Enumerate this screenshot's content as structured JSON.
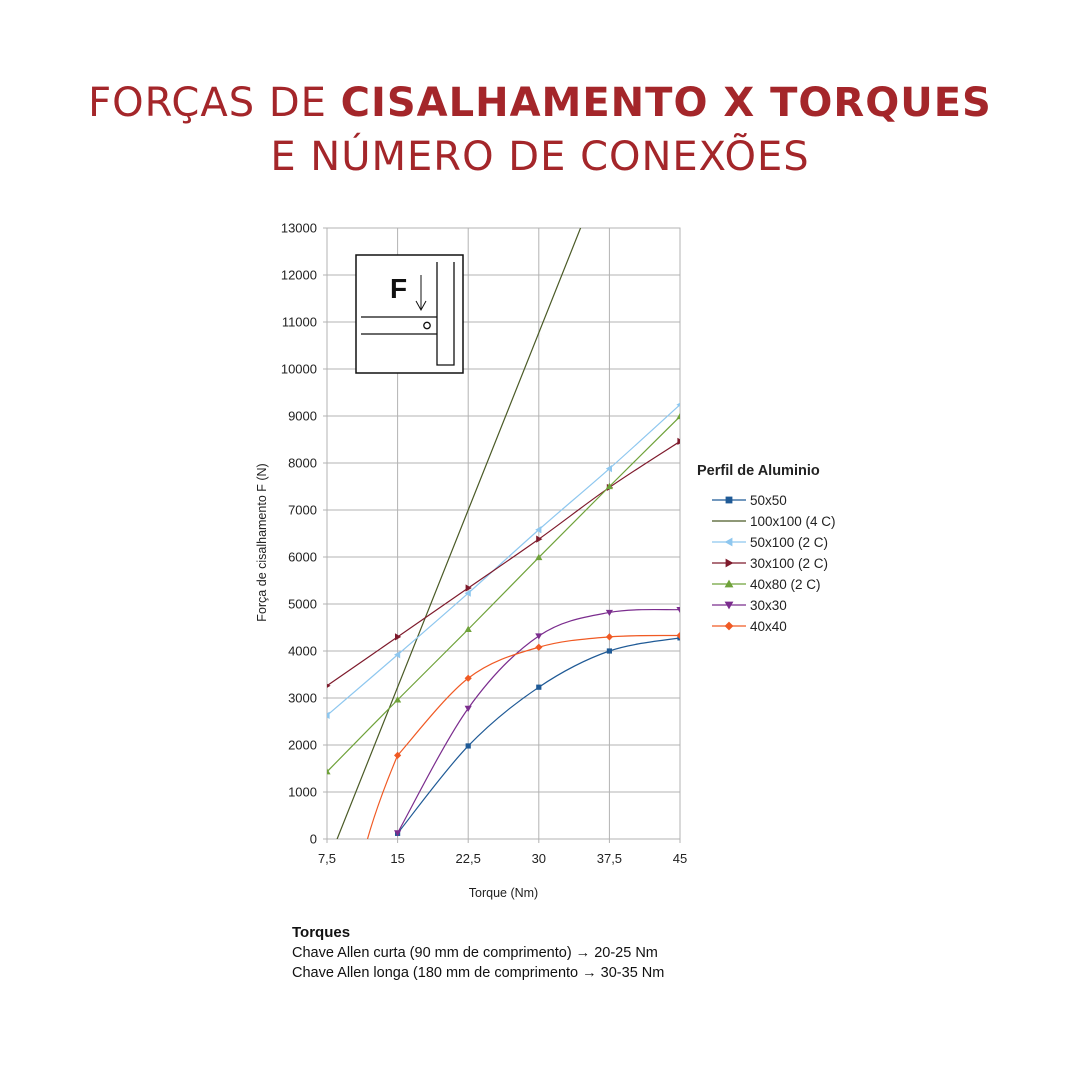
{
  "title": {
    "line1_regular": "FORÇAS DE ",
    "line1_bold": "CISALHAMENTO X TORQUES",
    "line2": "E NÚMERO DE CONEXÕES"
  },
  "diagram": {
    "force_label": "F"
  },
  "notes": {
    "heading": "Torques",
    "lines": [
      "Chave Allen curta (90 mm de comprimento) → 20-25 Nm",
      "Chave Allen longa (180 mm de comprimento → 30-35 Nm"
    ]
  },
  "chart_data": {
    "type": "line",
    "title": "",
    "xlabel": "Torque (Nm)",
    "ylabel": "Força de cisalhamento F (N)",
    "xlim": [
      7.5,
      45
    ],
    "ylim": [
      0,
      13000
    ],
    "x_ticks": [
      "7,5",
      "15",
      "22,5",
      "30",
      "37,5",
      "45"
    ],
    "y_ticks": [
      "0",
      "1000",
      "2000",
      "3000",
      "4000",
      "5000",
      "6000",
      "7000",
      "8000",
      "9000",
      "10000",
      "11000",
      "12000",
      "13000"
    ],
    "grid": true,
    "legend_title": "Perfil de Aluminio",
    "legend_position": "right",
    "series": [
      {
        "name": "50x50",
        "color": "#1f5a96",
        "marker": "square",
        "x": [
          15,
          22.5,
          30,
          37.5,
          45
        ],
        "y": [
          120,
          1980,
          3230,
          4000,
          4280
        ]
      },
      {
        "name": "100x100 (4 C)",
        "color": "#4a5a26",
        "marker": "bowtie",
        "x": [
          15,
          22.5,
          30
        ],
        "y": [
          3230,
          7000,
          10770
        ]
      },
      {
        "name": "50x100 (2 C)",
        "color": "#8ec7ef",
        "marker": "triangle-left",
        "x": [
          7.5,
          15,
          22.5,
          30,
          37.5,
          45
        ],
        "y": [
          2630,
          3920,
          5230,
          6580,
          7880,
          9240
        ]
      },
      {
        "name": "30x100 (2 C)",
        "color": "#7e1a2c",
        "marker": "triangle-right",
        "x": [
          7.5,
          15,
          22.5,
          30,
          37.5,
          45
        ],
        "y": [
          3260,
          4300,
          5340,
          6380,
          7480,
          8460
        ]
      },
      {
        "name": "40x80 (2 C)",
        "color": "#6fa23a",
        "marker": "triangle-up",
        "x": [
          7.5,
          15,
          22.5,
          30,
          37.5,
          45
        ],
        "y": [
          1430,
          2960,
          4460,
          5990,
          7500,
          8990
        ]
      },
      {
        "name": "30x30",
        "color": "#7b2d8e",
        "marker": "triangle-down",
        "x": [
          15,
          22.5,
          30,
          37.5,
          45
        ],
        "y": [
          130,
          2780,
          4320,
          4820,
          4880
        ]
      },
      {
        "name": "40x40",
        "color": "#f05a24",
        "marker": "diamond",
        "x": [
          15,
          22.5,
          30,
          37.5,
          45
        ],
        "y": [
          1780,
          3420,
          4080,
          4300,
          4330
        ]
      }
    ]
  }
}
